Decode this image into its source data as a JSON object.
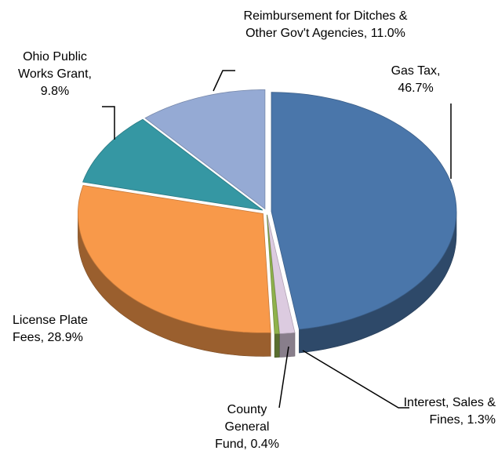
{
  "chart_data": {
    "type": "pie",
    "three_d": true,
    "categories": [
      "Gas Tax,",
      "Interest, Sales & Fines,",
      "County General Fund,",
      "License Plate Fees,",
      "Ohio Public Works Grant,",
      "Reimbursement for Ditches & Other Gov't Agencies,"
    ],
    "values": [
      46.7,
      1.3,
      0.4,
      28.9,
      9.8,
      11.0
    ],
    "value_labels": [
      "46.7%",
      "1.3%",
      "0.4%",
      "28.9%",
      "9.8%",
      "11.0%"
    ],
    "colors": [
      "#4a76aa",
      "#dccbe0",
      "#8fb24c",
      "#f8994a",
      "#3597a3",
      "#95aad4"
    ]
  }
}
